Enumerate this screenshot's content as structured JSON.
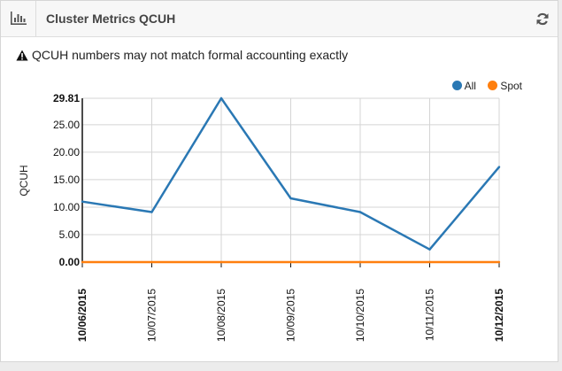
{
  "header": {
    "title": "Cluster Metrics QCUH",
    "chart_icon": "bar-chart-icon",
    "refresh_icon": "refresh-icon"
  },
  "warning": {
    "icon": "warning-icon",
    "text": "QCUH numbers may not match formal accounting exactly"
  },
  "colors": {
    "all": "#2a78b4",
    "spot": "#ff7f0e"
  },
  "chart_data": {
    "type": "line",
    "ylabel": "QCUH",
    "xlabel": "",
    "categories": [
      "10/06/2015",
      "10/07/2015",
      "10/08/2015",
      "10/09/2015",
      "10/10/2015",
      "10/11/2015",
      "10/12/2015"
    ],
    "bold_categories": [
      "10/06/2015",
      "10/12/2015"
    ],
    "ylim": [
      0,
      29.81
    ],
    "yticks": [
      "0.00",
      "5.00",
      "10.00",
      "15.00",
      "20.00",
      "25.00",
      "29.81"
    ],
    "bold_yticks": [
      "0.00",
      "29.81"
    ],
    "grid": true,
    "legend_position": "top-right",
    "series": [
      {
        "name": "All",
        "color": "#2a78b4",
        "values": [
          11.0,
          9.1,
          29.81,
          11.6,
          9.1,
          2.3,
          17.3
        ]
      },
      {
        "name": "Spot",
        "color": "#ff7f0e",
        "values": [
          0,
          0,
          0,
          0,
          0,
          0,
          0
        ]
      }
    ]
  }
}
